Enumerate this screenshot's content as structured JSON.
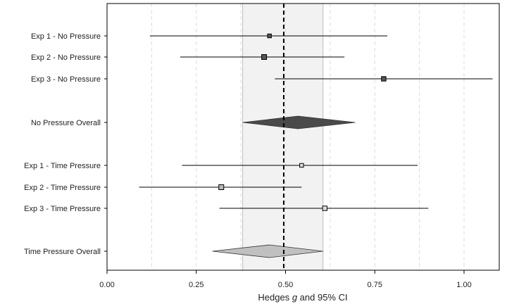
{
  "chart_data": {
    "type": "forest",
    "xlabel_parts": [
      "Hedges ",
      "g",
      " and 95% CI"
    ],
    "xlim": [
      0.0,
      1.1
    ],
    "xticks": [
      0.0,
      0.25,
      0.5,
      0.75,
      1.0
    ],
    "xtick_labels": [
      "0.00",
      "0.25",
      "0.50",
      "0.75",
      "1.00"
    ],
    "minor_gridlines": [
      0.125,
      0.25,
      0.375,
      0.5,
      0.625,
      0.75,
      0.875,
      1.0
    ],
    "reference_line": 0.495,
    "shaded_region": [
      0.38,
      0.605
    ],
    "rows": [
      {
        "label": "Exp 1 - No Pressure",
        "kind": "study",
        "estimate": 0.455,
        "ci_low": 0.12,
        "ci_high": 0.785,
        "weight": 0.6,
        "fill": "#555555"
      },
      {
        "label": "Exp 2 - No Pressure",
        "kind": "study",
        "estimate": 0.44,
        "ci_low": 0.205,
        "ci_high": 0.665,
        "weight": 1.0,
        "fill": "#555555"
      },
      {
        "label": "Exp 3 - No Pressure",
        "kind": "study",
        "estimate": 0.775,
        "ci_low": 0.47,
        "ci_high": 1.08,
        "weight": 0.85,
        "fill": "#555555"
      },
      {
        "label": "No Pressure Overall",
        "kind": "summary",
        "estimate": 0.535,
        "ci_low": 0.38,
        "ci_high": 0.695,
        "fill": "#4a4a4a"
      },
      {
        "label": "Exp 1 - Time Pressure",
        "kind": "study",
        "estimate": 0.545,
        "ci_low": 0.21,
        "ci_high": 0.87,
        "weight": 0.6,
        "fill": "#dddddd"
      },
      {
        "label": "Exp 2 - Time Pressure",
        "kind": "study",
        "estimate": 0.32,
        "ci_low": 0.09,
        "ci_high": 0.545,
        "weight": 1.0,
        "fill": "#b8b8b8"
      },
      {
        "label": "Exp 3 - Time Pressure",
        "kind": "study",
        "estimate": 0.61,
        "ci_low": 0.315,
        "ci_high": 0.9,
        "weight": 0.85,
        "fill": "#dddddd"
      },
      {
        "label": "Time Pressure Overall",
        "kind": "summary",
        "estimate": 0.455,
        "ci_low": 0.295,
        "ci_high": 0.605,
        "fill": "#c0c0c0"
      }
    ]
  }
}
